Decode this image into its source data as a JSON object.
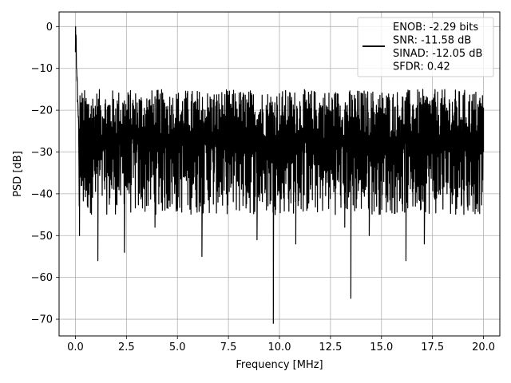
{
  "chart_data": {
    "type": "line",
    "title": "",
    "xlabel": "Frequency [MHz]",
    "ylabel": "PSD [dB]",
    "xlim": [
      -0.8,
      20.8
    ],
    "ylim": [
      -74,
      3.5
    ],
    "grid": true,
    "legend_position": "top-right",
    "xticks": [
      0.0,
      2.5,
      5.0,
      7.5,
      10.0,
      12.5,
      15.0,
      17.5,
      20.0
    ],
    "xtick_labels": [
      "0.0",
      "2.5",
      "5.0",
      "7.5",
      "10.0",
      "12.5",
      "15.0",
      "17.5",
      "20.0"
    ],
    "yticks": [
      0,
      -10,
      -20,
      -30,
      -40,
      -50,
      -60,
      -70
    ],
    "ytick_labels": [
      "0",
      "−10",
      "−20",
      "−30",
      "−40",
      "−50",
      "−60",
      "−70"
    ],
    "legend": {
      "lines": [
        "ENOB: -2.29 bits",
        "SNR: -11.58 dB",
        "SINAD: -12.05 dB",
        "SFDR: 0.42"
      ]
    },
    "series": [
      {
        "color": "#000000",
        "x": [
          0.0,
          0.01,
          0.02,
          0.03,
          0.05,
          0.08,
          0.1,
          0.13,
          0.16,
          0.2,
          0.25,
          0.3,
          0.4,
          0.5,
          0.6,
          0.75,
          0.9,
          1.0,
          1.1,
          1.2,
          1.35,
          1.5,
          1.7,
          1.85,
          2.0,
          2.1,
          2.2,
          2.4,
          2.6,
          2.8,
          3.0,
          3.2,
          3.5,
          3.7,
          3.9,
          4.2,
          4.5,
          4.8,
          5.0,
          5.3,
          5.6,
          5.9,
          6.2,
          6.5,
          6.8,
          7.1,
          7.4,
          7.7,
          8.0,
          8.3,
          8.6,
          8.9,
          9.2,
          9.5,
          9.7,
          9.9,
          10.2,
          10.5,
          10.8,
          11.1,
          11.4,
          11.7,
          12.0,
          12.3,
          12.6,
          12.9,
          13.2,
          13.5,
          13.8,
          14.1,
          14.4,
          14.7,
          15.0,
          15.3,
          15.6,
          15.9,
          16.2,
          16.5,
          16.8,
          17.1,
          17.4,
          17.7,
          18.0,
          18.3,
          18.6,
          18.9,
          19.2,
          19.5,
          19.8,
          20.0
        ],
        "y": [
          -6,
          0,
          -5,
          -2,
          -10,
          -12,
          -18,
          -20,
          -24,
          -50,
          -35,
          -22,
          -30,
          -26,
          -38,
          -21,
          -28,
          -32,
          -56,
          -27,
          -22,
          -36,
          -31,
          -24,
          -40,
          -28,
          -33,
          -54,
          -26,
          -22,
          -30,
          -38,
          -35,
          -25,
          -48,
          -29,
          -32,
          -21,
          -44,
          -30,
          -33,
          -22,
          -55,
          -29,
          -35,
          -24,
          -40,
          -29,
          -33,
          -30,
          -23,
          -51,
          -30,
          -35,
          -71,
          -28,
          -41,
          -26,
          -52,
          -30,
          -29,
          -27,
          -41,
          -33,
          -26,
          -36,
          -48,
          -65,
          -32,
          -26,
          -50,
          -31,
          -24,
          -39,
          -33,
          -28,
          -56,
          -31,
          -26,
          -52,
          -34,
          -41,
          -26,
          -30,
          -35,
          -24,
          -40,
          -36,
          -28,
          -30
        ]
      }
    ],
    "noise_band": {
      "upper_range": [
        -27,
        -15
      ],
      "lower_range": [
        -45,
        -26
      ]
    }
  }
}
